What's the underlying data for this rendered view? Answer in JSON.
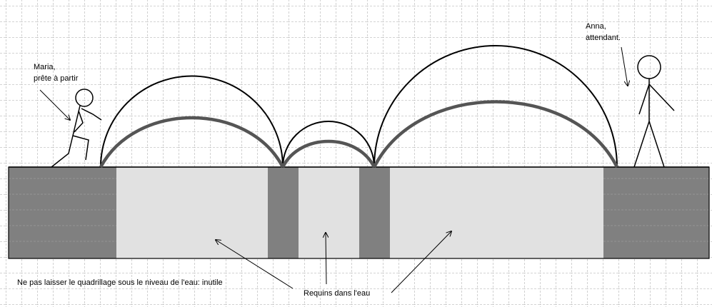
{
  "labels": {
    "maria_line1": "Maria,",
    "maria_line2": "prête à partir",
    "anna_line1": "Anna,",
    "anna_line2": "attendant.",
    "note": "Ne pas laisser le quadrillage sous le niveau de l'eau: inutile",
    "sharks": "Requins dans l'eau"
  },
  "colors": {
    "grid": "#8c8c8c",
    "land": "#808080",
    "water": "#e1e1e1",
    "outline": "#000000",
    "arc_gray": "#555555"
  }
}
